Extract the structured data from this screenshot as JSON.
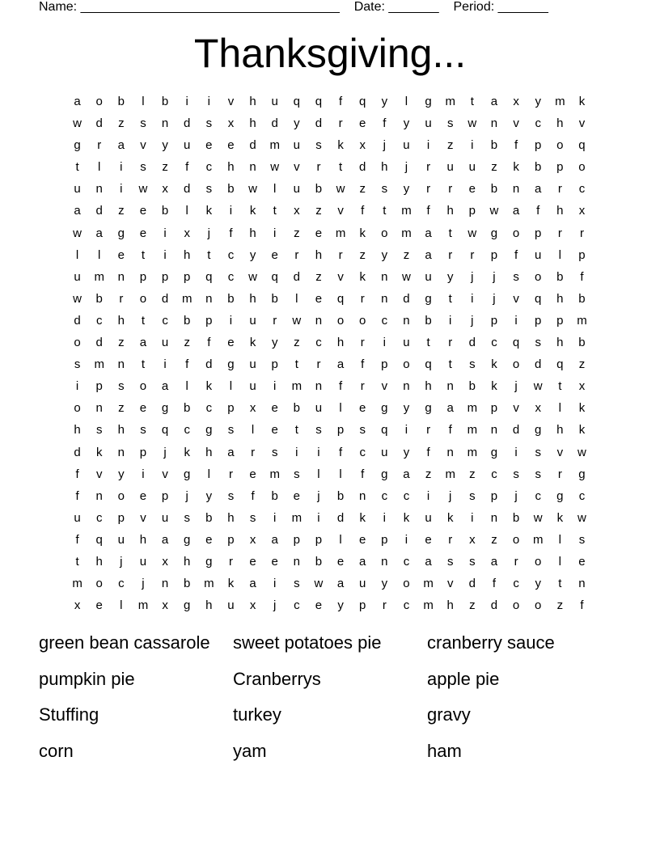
{
  "header": {
    "name_label": "Name: ____________________________________",
    "date_label": "Date: _______",
    "period_label": "Period: _______"
  },
  "title": "Thanksgiving...",
  "grid": [
    "aoblbiivhuqqfqylgmtaxymk",
    "wdzsndsxhdydrefyuswnvchv",
    "gravyueedmuskxjuizibfpoq",
    "tliszfchnwvrtdhjruuzkbpo",
    "uniwxdsbwlubwzsyrrebnarc",
    "adzeblkiktxzvftmfhpwafhx",
    "wageixjfhizemkomatwgoprr",
    "lletihtcyerhrzyzarrpfulp",
    "umnpppqcwqdzvknwuyjjsobf",
    "wbrodmnbhbleqrndgtijvqhb",
    "dchtcbpiurwnoocnbijpippm",
    "odzauzfekyzchriutrdcqshb",
    "smntifdguptrafpoqtskodqz",
    "ipsoalkluimnfrvnhnbkjwtx",
    "onzegbcpxebulegygampvxlk",
    "hshsqcgsletspsqirfmndghk",
    "dknpjkharsiifcuyfnmgisvw",
    "fvyivglremsllfgazmzcssrg",
    "fnoepjysfbejbnccijspjcgc",
    "ucpvusbhsimidkikukinbwkw",
    "fquhagepxapplepierxzomls",
    "thjuxhgreenbeancassarole",
    "mocjnbmkaiswauyomvdfcytn",
    "xelmxghuxjceyprcmhzdoozf"
  ],
  "words": [
    "green bean cassarole",
    "sweet potatoes pie",
    "cranberry sauce",
    "pumpkin pie",
    "Cranberrys",
    "apple pie",
    "Stuffing",
    "turkey",
    "gravy",
    "corn",
    "yam",
    "ham"
  ]
}
